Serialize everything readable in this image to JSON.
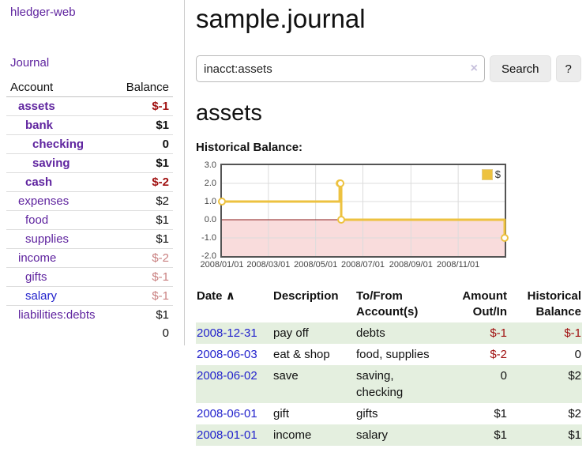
{
  "sidebar": {
    "brand": "hledger-web",
    "nav": {
      "journal": "Journal"
    },
    "accounts": {
      "headers": {
        "account": "Account",
        "balance": "Balance"
      },
      "rows": [
        {
          "name": "assets",
          "depth": 1,
          "bold": true,
          "balance": "$-1",
          "neg": "strong"
        },
        {
          "name": "bank",
          "depth": 2,
          "bold": true,
          "balance": "$1"
        },
        {
          "name": "checking",
          "depth": 3,
          "bold": true,
          "balance": "0"
        },
        {
          "name": "saving",
          "depth": 3,
          "bold": true,
          "balance": "$1"
        },
        {
          "name": "cash",
          "depth": 2,
          "bold": true,
          "balance": "$-2",
          "neg": "strong"
        },
        {
          "name": "expenses",
          "depth": 1,
          "bold": false,
          "balance": "$2"
        },
        {
          "name": "food",
          "depth": 2,
          "bold": false,
          "balance": "$1"
        },
        {
          "name": "supplies",
          "depth": 2,
          "bold": false,
          "balance": "$1"
        },
        {
          "name": "income",
          "depth": 1,
          "bold": false,
          "balance": "$-2",
          "neg": "pale"
        },
        {
          "name": "gifts",
          "depth": 2,
          "bold": false,
          "balance": "$-1",
          "neg": "pale"
        },
        {
          "name": "salary",
          "depth": 2,
          "bold": false,
          "balance": "$-1",
          "neg": "pale",
          "link": "blue"
        },
        {
          "name": "liabilities:debts",
          "depth": 1,
          "bold": false,
          "balance": "$1"
        }
      ],
      "total": "0"
    }
  },
  "main": {
    "title": "sample.journal",
    "search": {
      "query": "inacct:assets",
      "clear_icon": "×",
      "search_label": "Search",
      "help_label": "?"
    },
    "account_heading": "assets",
    "chart_label": "Historical Balance:"
  },
  "chart_data": {
    "type": "line",
    "title": "Historical Balance:",
    "step": true,
    "series": [
      {
        "name": "$",
        "color": "#edc240",
        "points": [
          [
            "2008-01-01",
            1
          ],
          [
            "2008-06-01",
            2
          ],
          [
            "2008-06-02",
            2
          ],
          [
            "2008-06-03",
            0
          ],
          [
            "2008-12-31",
            -1
          ]
        ]
      }
    ],
    "x_range": [
      "2008-01-01",
      "2008-12-31"
    ],
    "x_ticks": [
      "2008/01/01",
      "2008/03/01",
      "2008/05/01",
      "2008/07/01",
      "2008/09/01",
      "2008/11/01"
    ],
    "y_ticks": [
      "3.0",
      "2.0",
      "1.0",
      "0.0",
      "-1.0",
      "-2.0"
    ],
    "ylim": [
      -2,
      3
    ],
    "legend": {
      "label": "$",
      "position": "top-right"
    },
    "grid": true,
    "grid_color": "#dcdcdc",
    "negative_region_color": "#f9dcdc",
    "zero_line_color": "#8b1a1a"
  },
  "register": {
    "headers": {
      "date": "Date",
      "sort_icon": "∧",
      "description": "Description",
      "tofrom": "To/From Account(s)",
      "amount": "Amount Out/In",
      "balance": "Historical Balance"
    },
    "rows": [
      {
        "date": "2008-12-31",
        "description": "pay off",
        "accounts": "debts",
        "amount": "$-1",
        "amount_negative": true,
        "balance": "$-1",
        "balance_negative": true
      },
      {
        "date": "2008-06-03",
        "description": "eat & shop",
        "accounts": "food, supplies",
        "amount": "$-2",
        "amount_negative": true,
        "balance": "0",
        "balance_negative": false
      },
      {
        "date": "2008-06-02",
        "description": "save",
        "accounts": "saving, checking",
        "amount": "0",
        "amount_negative": false,
        "balance": "$2",
        "balance_negative": false
      },
      {
        "date": "2008-06-01",
        "description": "gift",
        "accounts": "gifts",
        "amount": "$1",
        "amount_negative": false,
        "balance": "$2",
        "balance_negative": false
      },
      {
        "date": "2008-01-01",
        "description": "income",
        "accounts": "salary",
        "amount": "$1",
        "amount_negative": false,
        "balance": "$1",
        "balance_negative": false
      }
    ]
  },
  "colors": {
    "link_purple": "#5f249f",
    "link_blue": "#2222cc",
    "negative_strong": "#a01010",
    "negative_pale": "#c98080",
    "row_green": "#e4efdf",
    "chart_line": "#edc240",
    "chart_negative_fill": "#f9dcdc",
    "chart_zero_line": "#8b1a1a"
  }
}
